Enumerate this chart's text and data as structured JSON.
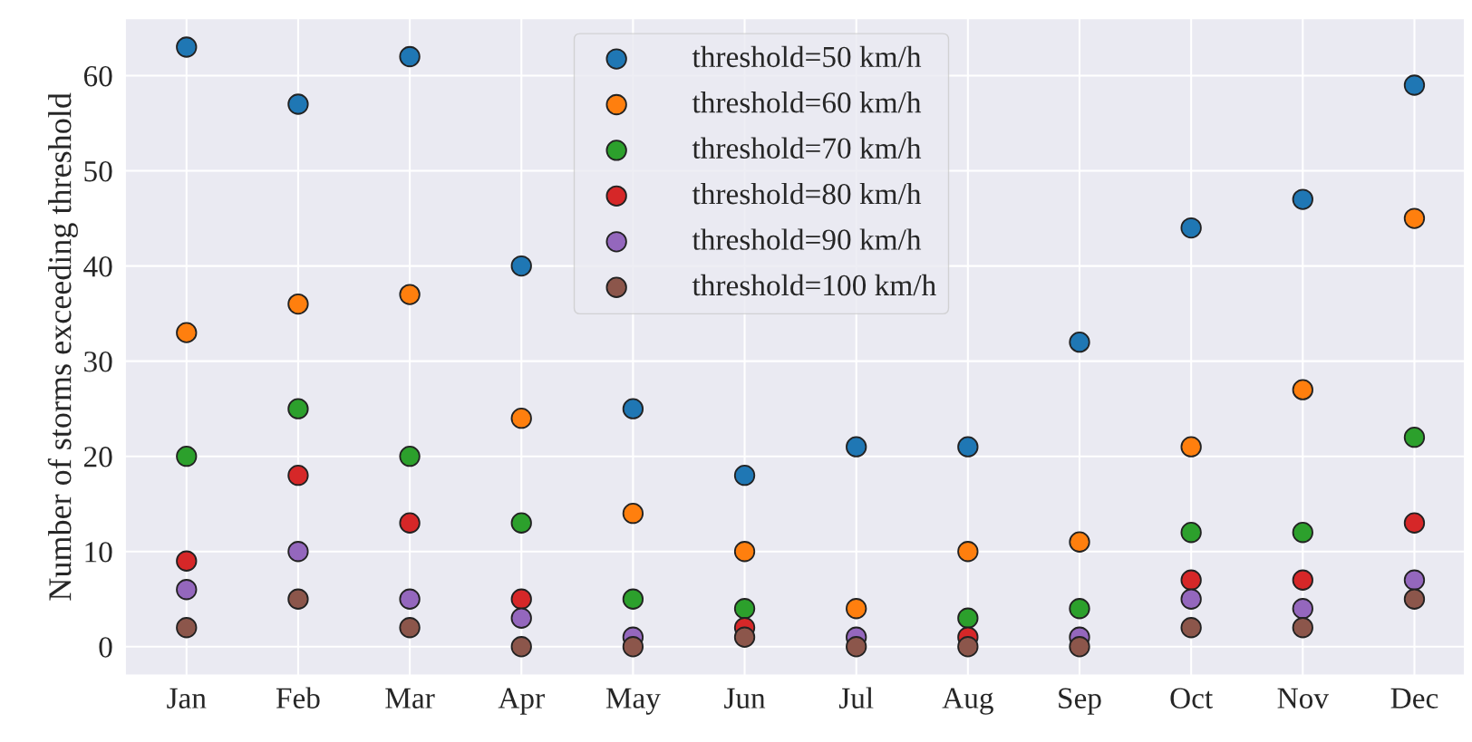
{
  "chart_data": {
    "type": "scatter",
    "ylabel": "Number of storms exceeding threshold",
    "categories": [
      "Jan",
      "Feb",
      "Mar",
      "Apr",
      "May",
      "Jun",
      "Jul",
      "Aug",
      "Sep",
      "Oct",
      "Nov",
      "Dec"
    ],
    "series": [
      {
        "name": "threshold=50 km/h",
        "color": "#1f77b4",
        "values": [
          63,
          57,
          62,
          40,
          25,
          18,
          21,
          21,
          32,
          44,
          47,
          59
        ]
      },
      {
        "name": "threshold=60 km/h",
        "color": "#ff7f0e",
        "values": [
          33,
          36,
          37,
          24,
          14,
          10,
          4,
          10,
          11,
          21,
          27,
          45
        ]
      },
      {
        "name": "threshold=70 km/h",
        "color": "#2ca02c",
        "values": [
          20,
          25,
          20,
          13,
          5,
          4,
          null,
          3,
          4,
          12,
          12,
          22
        ]
      },
      {
        "name": "threshold=80 km/h",
        "color": "#d62728",
        "values": [
          9,
          18,
          13,
          5,
          null,
          2,
          null,
          1,
          null,
          7,
          7,
          13
        ]
      },
      {
        "name": "threshold=90 km/h",
        "color": "#9467bd",
        "values": [
          6,
          10,
          5,
          3,
          1,
          null,
          1,
          null,
          1,
          5,
          4,
          7
        ]
      },
      {
        "name": "threshold=100 km/h",
        "color": "#8c564b",
        "values": [
          2,
          5,
          2,
          0,
          0,
          1,
          0,
          0,
          0,
          2,
          2,
          5
        ]
      }
    ],
    "ylim": [
      -3,
      66
    ],
    "yticks": [
      0,
      10,
      20,
      30,
      40,
      50,
      60
    ],
    "grid": true,
    "legend": "top center",
    "marker": "circle"
  }
}
